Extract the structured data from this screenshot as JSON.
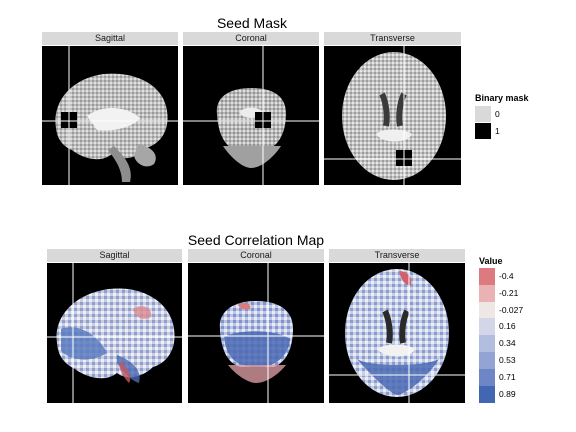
{
  "figures": [
    {
      "title": "Seed Mask",
      "panels": [
        "Sagittal",
        "Coronal",
        "Transverse"
      ],
      "legend": {
        "title": "Binary mask",
        "entries": [
          {
            "label": "0",
            "color": "#d9d9d9"
          },
          {
            "label": "1",
            "color": "#000000"
          }
        ]
      }
    },
    {
      "title": "Seed Correlation Map",
      "panels": [
        "Sagittal",
        "Coronal",
        "Transverse"
      ],
      "legend": {
        "title": "Value",
        "entries": [
          {
            "label": "-0.4",
            "color": "#dc7a80"
          },
          {
            "label": "-0.21",
            "color": "#e9b3b6"
          },
          {
            "label": "-0.027",
            "color": "#efe6e6"
          },
          {
            "label": "0.16",
            "color": "#d3d6e8"
          },
          {
            "label": "0.34",
            "color": "#b3bddf"
          },
          {
            "label": "0.53",
            "color": "#93a3d4"
          },
          {
            "label": "0.71",
            "color": "#6f86c6"
          },
          {
            "label": "0.89",
            "color": "#4266b1"
          }
        ]
      }
    }
  ]
}
